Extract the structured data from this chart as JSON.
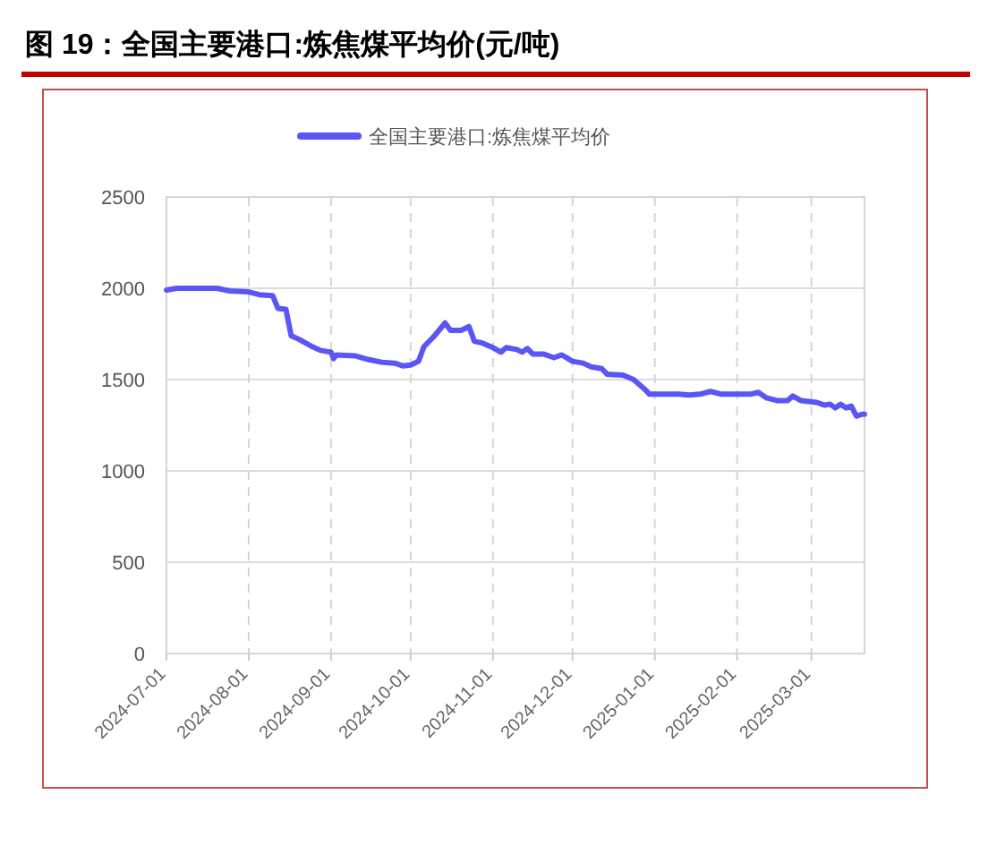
{
  "chart_data": {
    "type": "line",
    "title": "图 19：全国主要港口:炼焦煤平均价(元/吨)",
    "x": [
      "2024-07-01",
      "2024-07-05",
      "2024-07-20",
      "2024-07-25",
      "2024-08-01",
      "2024-08-05",
      "2024-08-10",
      "2024-08-12",
      "2024-08-15",
      "2024-08-17",
      "2024-08-20",
      "2024-08-25",
      "2024-08-28",
      "2024-09-01",
      "2024-09-02",
      "2024-09-03",
      "2024-09-10",
      "2024-09-15",
      "2024-09-20",
      "2024-09-25",
      "2024-09-28",
      "2024-10-01",
      "2024-10-04",
      "2024-10-06",
      "2024-10-10",
      "2024-10-14",
      "2024-10-16",
      "2024-10-20",
      "2024-10-23",
      "2024-10-25",
      "2024-10-28",
      "2024-11-01",
      "2024-11-04",
      "2024-11-06",
      "2024-11-10",
      "2024-11-12",
      "2024-11-14",
      "2024-11-16",
      "2024-11-20",
      "2024-11-24",
      "2024-11-27",
      "2024-12-01",
      "2024-12-05",
      "2024-12-08",
      "2024-12-12",
      "2024-12-14",
      "2024-12-20",
      "2024-12-24",
      "2024-12-28",
      "2024-12-30",
      "2025-01-10",
      "2025-01-14",
      "2025-01-18",
      "2025-01-22",
      "2025-01-26",
      "2025-02-06",
      "2025-02-09",
      "2025-02-12",
      "2025-02-16",
      "2025-02-20",
      "2025-02-22",
      "2025-02-25",
      "2025-03-03",
      "2025-03-06",
      "2025-03-08",
      "2025-03-10",
      "2025-03-12",
      "2025-03-14",
      "2025-03-16",
      "2025-03-18",
      "2025-03-20",
      "2025-03-21"
    ],
    "series": [
      {
        "name": "全国主要港口:炼焦煤平均价",
        "color": "#5a55f5",
        "values": [
          1990,
          2000,
          2000,
          1985,
          1980,
          1965,
          1960,
          1890,
          1885,
          1740,
          1720,
          1680,
          1660,
          1650,
          1615,
          1635,
          1630,
          1610,
          1595,
          1590,
          1575,
          1580,
          1600,
          1680,
          1740,
          1810,
          1770,
          1770,
          1790,
          1710,
          1700,
          1675,
          1650,
          1675,
          1665,
          1650,
          1670,
          1640,
          1640,
          1620,
          1635,
          1600,
          1590,
          1570,
          1560,
          1530,
          1525,
          1500,
          1450,
          1420,
          1420,
          1415,
          1420,
          1435,
          1420,
          1420,
          1430,
          1400,
          1385,
          1385,
          1410,
          1385,
          1375,
          1360,
          1365,
          1345,
          1365,
          1345,
          1355,
          1300,
          1310,
          1310
        ]
      }
    ],
    "xlim": [
      "2024-07-01",
      "2025-03-21"
    ],
    "xticks": [
      "2024-07-01",
      "2024-08-01",
      "2024-09-01",
      "2024-10-01",
      "2024-11-01",
      "2024-12-01",
      "2025-01-01",
      "2025-02-01",
      "2025-03-01"
    ],
    "ylim": [
      0,
      2500
    ],
    "yticks": [
      0,
      500,
      1000,
      1500,
      2000,
      2500
    ],
    "grid": true,
    "legend": "top",
    "marker": "none",
    "line_style": "solid"
  }
}
